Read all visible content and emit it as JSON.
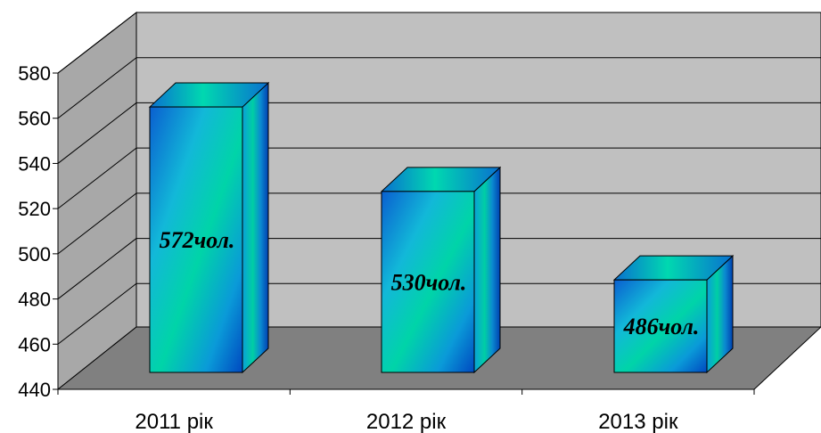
{
  "chart_data": {
    "type": "bar",
    "categories": [
      "2011 рік",
      "2012 рік",
      "2013 рік"
    ],
    "values": [
      572,
      530,
      486
    ],
    "data_labels": [
      "572чол.",
      "530чол.",
      "486чол."
    ],
    "ylim": [
      440,
      580
    ],
    "yticks": [
      440,
      460,
      480,
      500,
      520,
      540,
      560,
      580
    ],
    "grid": true,
    "legend": "none",
    "colors": {
      "back_wall": "#c0c0c0",
      "floor": "#808080",
      "bar_light": "#00d2a8",
      "bar_dark": "#0050c8"
    }
  }
}
